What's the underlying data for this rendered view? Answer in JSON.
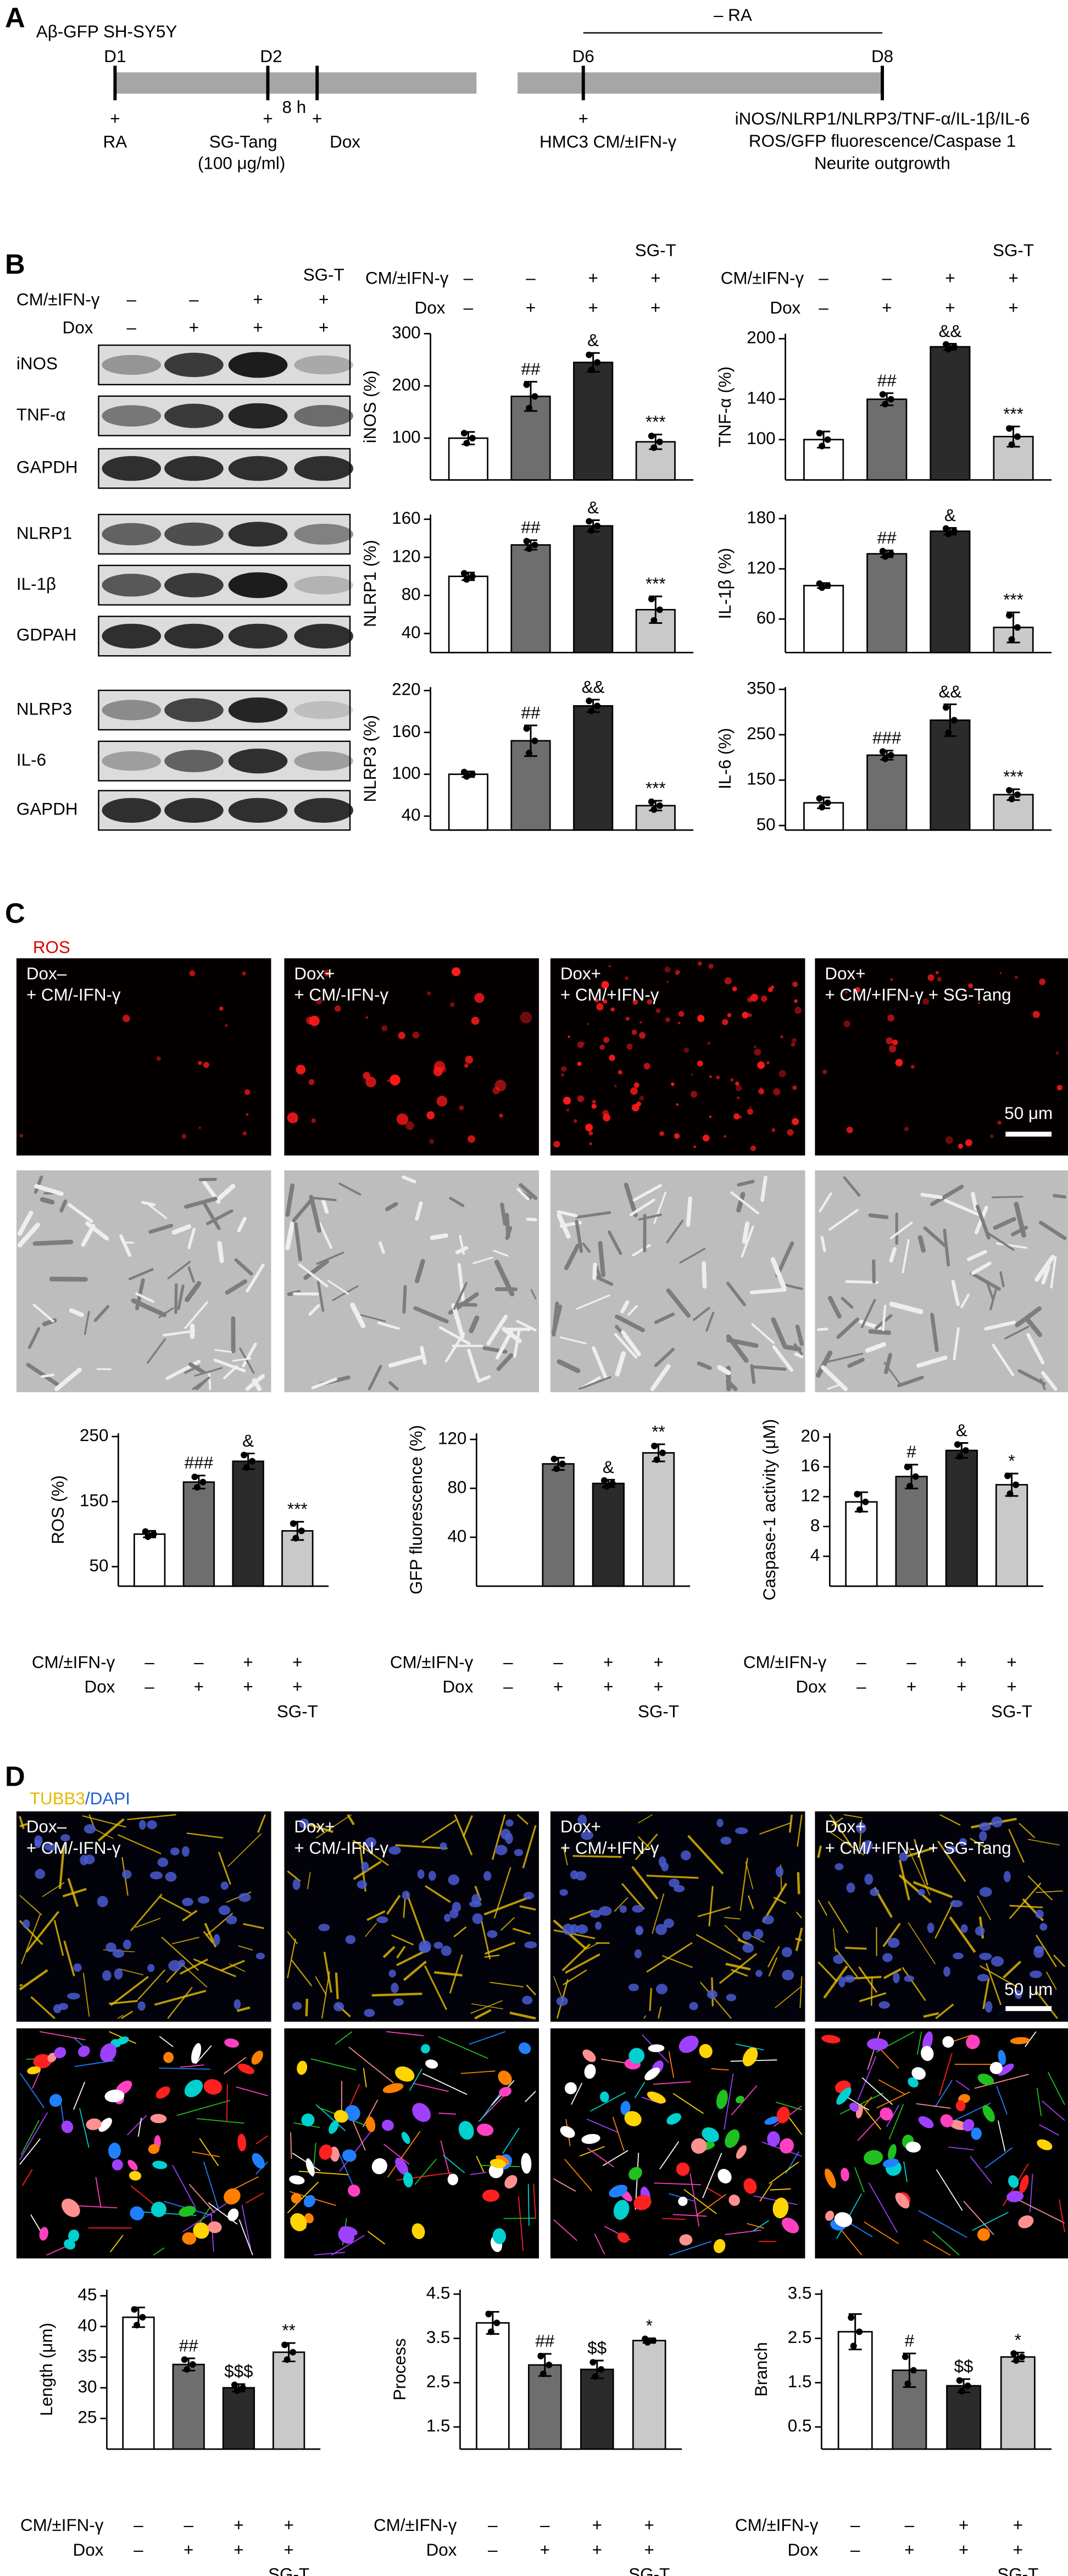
{
  "panel_labels": [
    "A",
    "B",
    "C",
    "D"
  ],
  "timeline": {
    "title": "Aβ-GFP SH-SY5Y",
    "days": [
      "D1",
      "D2",
      "D6",
      "D8"
    ],
    "bracket_label": "– RA",
    "interval": "8 h",
    "additions": [
      {
        "sign": "+",
        "label": "RA"
      },
      {
        "sign": "+",
        "label": "SG-Tang",
        "note": "(100 μg/ml)"
      },
      {
        "sign": "+",
        "label": "Dox"
      },
      {
        "sign": "+",
        "label": "HMC3 CM/±IFN-γ"
      }
    ],
    "readouts": [
      "iNOS/NLRP1/NLRP3/TNF-α/IL-1β/IL-6",
      "ROS/GFP fluorescence/Caspase 1",
      "Neurite outgrowth"
    ]
  },
  "blot": {
    "condition_rows": [
      {
        "label": "CM/±IFN-γ",
        "marks": [
          "–",
          "–",
          "+",
          "+"
        ]
      },
      {
        "label": "Dox",
        "marks": [
          "–",
          "+",
          "+",
          "+"
        ]
      }
    ],
    "group_label": "SG-T",
    "proteins": [
      "iNOS",
      "TNF-α",
      "GAPDH",
      "NLRP1",
      "IL-1β",
      "GDPAH",
      "NLRP3",
      "IL-6",
      "GAPDH"
    ]
  },
  "ros_images": {
    "channel": "ROS",
    "labels": [
      [
        "Dox–",
        "+ CM/-IFN-γ"
      ],
      [
        "Dox+",
        "+ CM/-IFN-γ"
      ],
      [
        "Dox+",
        "+ CM/+IFN-γ"
      ],
      [
        "Dox+",
        "+ CM/+IFN-γ + SG-Tang"
      ]
    ],
    "scale": "50 μm"
  },
  "neurite_images": {
    "channel": [
      "TUBB3",
      "/DAPI"
    ],
    "labels": [
      [
        "Dox–",
        "+ CM/-IFN-γ"
      ],
      [
        "Dox+",
        "+ CM/-IFN-γ"
      ],
      [
        "Dox+",
        "+ CM/+IFN-γ"
      ],
      [
        "Dox+",
        "+ CM/+IFN-γ + SG-Tang"
      ]
    ],
    "scale": "50 μm"
  },
  "chart_data": [
    {
      "type": "bar",
      "y_label": "iNOS (%)",
      "values": [
        100,
        180,
        245,
        93
      ],
      "errors": [
        12,
        28,
        18,
        14
      ],
      "annotations": [
        null,
        "##",
        "&",
        "***"
      ],
      "colors": [
        "#ffffff",
        "#6e6e6e",
        "#2b2b2b",
        "#c9c9c9"
      ],
      "ylim": [
        20,
        300
      ],
      "yticks": [
        100,
        200,
        300
      ],
      "condition_rows": [
        {
          "label": "CM/±IFN-γ",
          "marks": [
            "–",
            "–",
            "+",
            "+"
          ]
        },
        {
          "label": "Dox",
          "marks": [
            "–",
            "+",
            "+",
            "+"
          ]
        }
      ],
      "group_label": "SG-T"
    },
    {
      "type": "bar",
      "y_label": "TNF-α (%)",
      "values": [
        100,
        140,
        192,
        103
      ],
      "errors": [
        8,
        6,
        3,
        10
      ],
      "annotations": [
        null,
        "##",
        "&&",
        "***"
      ],
      "colors": [
        "#ffffff",
        "#6e6e6e",
        "#2b2b2b",
        "#c9c9c9"
      ],
      "ylim": [
        60,
        205
      ],
      "yticks": [
        100,
        140,
        200
      ],
      "condition_rows": [
        {
          "label": "CM/±IFN-γ",
          "marks": [
            "–",
            "–",
            "+",
            "+"
          ]
        },
        {
          "label": "Dox",
          "marks": [
            "–",
            "+",
            "+",
            "+"
          ]
        }
      ],
      "group_label": "SG-T"
    },
    {
      "type": "bar",
      "y_label": "NLRP1 (%)",
      "values": [
        100,
        133,
        153,
        65
      ],
      "errors": [
        4,
        5,
        6,
        14
      ],
      "annotations": [
        null,
        "##",
        "&",
        "***"
      ],
      "colors": [
        "#ffffff",
        "#6e6e6e",
        "#2b2b2b",
        "#c9c9c9"
      ],
      "ylim": [
        20,
        165
      ],
      "yticks": [
        40,
        80,
        120,
        160
      ]
    },
    {
      "type": "bar",
      "y_label": "IL-1β (%)",
      "values": [
        100,
        138,
        165,
        50
      ],
      "errors": [
        3,
        4,
        4,
        18
      ],
      "annotations": [
        null,
        "##",
        "&",
        "***"
      ],
      "colors": [
        "#ffffff",
        "#6e6e6e",
        "#2b2b2b",
        "#c9c9c9"
      ],
      "ylim": [
        20,
        185
      ],
      "yticks": [
        60,
        120,
        180
      ]
    },
    {
      "type": "bar",
      "y_label": "NLRP3 (%)",
      "values": [
        100,
        148,
        198,
        55
      ],
      "errors": [
        4,
        22,
        9,
        7
      ],
      "annotations": [
        null,
        "##",
        "&&",
        "***"
      ],
      "colors": [
        "#ffffff",
        "#6e6e6e",
        "#2b2b2b",
        "#c9c9c9"
      ],
      "ylim": [
        20,
        225
      ],
      "yticks": [
        40,
        100,
        160,
        220
      ]
    },
    {
      "type": "bar",
      "y_label": "IL-6 (%)",
      "values": [
        100,
        205,
        282,
        118
      ],
      "errors": [
        12,
        10,
        35,
        12
      ],
      "annotations": [
        null,
        "###",
        "&&",
        "***"
      ],
      "colors": [
        "#ffffff",
        "#6e6e6e",
        "#2b2b2b",
        "#c9c9c9"
      ],
      "ylim": [
        40,
        355
      ],
      "yticks": [
        50,
        150,
        250,
        350
      ]
    },
    {
      "type": "bar",
      "y_label": "ROS (%)",
      "values": [
        100,
        180,
        212,
        105
      ],
      "errors": [
        5,
        10,
        12,
        14
      ],
      "annotations": [
        null,
        "###",
        "&",
        "***"
      ],
      "colors": [
        "#ffffff",
        "#6e6e6e",
        "#2b2b2b",
        "#c9c9c9"
      ],
      "ylim": [
        20,
        255
      ],
      "yticks": [
        50,
        150,
        250
      ],
      "condition_rows": [
        {
          "label": "CM/±IFN-γ",
          "marks": [
            "–",
            "–",
            "+",
            "+"
          ]
        },
        {
          "label": "Dox",
          "marks": [
            "–",
            "+",
            "+",
            "+"
          ]
        }
      ],
      "group_label": "SG-T"
    },
    {
      "type": "bar",
      "y_label": "GFP fluorescence (%)",
      "values": [
        null,
        100,
        84,
        109
      ],
      "errors": [
        null,
        5,
        3,
        7
      ],
      "annotations": [
        null,
        null,
        "&",
        "**"
      ],
      "colors": [
        "#ffffff",
        "#6e6e6e",
        "#2b2b2b",
        "#c9c9c9"
      ],
      "ylim": [
        0,
        125
      ],
      "yticks": [
        40,
        80,
        120
      ],
      "condition_rows": [
        {
          "label": "CM/±IFN-γ",
          "marks": [
            "–",
            "–",
            "+",
            "+"
          ]
        },
        {
          "label": "Dox",
          "marks": [
            "–",
            "+",
            "+",
            "+"
          ]
        }
      ],
      "group_label": "SG-T"
    },
    {
      "type": "bar",
      "y_label": "Caspase-1 activity (μM)",
      "values": [
        11.3,
        14.7,
        18.2,
        13.6
      ],
      "errors": [
        1.3,
        1.6,
        1.0,
        1.5
      ],
      "annotations": [
        null,
        "#",
        "&",
        "*"
      ],
      "colors": [
        "#ffffff",
        "#6e6e6e",
        "#2b2b2b",
        "#c9c9c9"
      ],
      "ylim": [
        0,
        20.5
      ],
      "yticks": [
        4,
        8,
        12,
        16,
        20
      ],
      "condition_rows": [
        {
          "label": "CM/±IFN-γ",
          "marks": [
            "–",
            "–",
            "+",
            "+"
          ]
        },
        {
          "label": "Dox",
          "marks": [
            "–",
            "+",
            "+",
            "+"
          ]
        }
      ],
      "group_label": "SG-T"
    },
    {
      "type": "bar",
      "y_label": "Length (μm)",
      "values": [
        41.5,
        33.8,
        30,
        35.8
      ],
      "errors": [
        1.6,
        1.0,
        0.6,
        1.5
      ],
      "annotations": [
        null,
        "##",
        "$$$",
        "**"
      ],
      "colors": [
        "#ffffff",
        "#6e6e6e",
        "#2b2b2b",
        "#c9c9c9"
      ],
      "ylim": [
        20,
        46
      ],
      "yticks": [
        25,
        30,
        35,
        40,
        45
      ],
      "condition_rows": [
        {
          "label": "CM/±IFN-γ",
          "marks": [
            "–",
            "–",
            "+",
            "+"
          ]
        },
        {
          "label": "Dox",
          "marks": [
            "–",
            "+",
            "+",
            "+"
          ]
        }
      ],
      "group_label": "SG-T"
    },
    {
      "type": "bar",
      "y_label": "Process",
      "values": [
        3.85,
        2.9,
        2.8,
        3.45
      ],
      "errors": [
        0.25,
        0.25,
        0.2,
        0.05
      ],
      "annotations": [
        null,
        "##",
        "$$",
        "*"
      ],
      "colors": [
        "#ffffff",
        "#6e6e6e",
        "#2b2b2b",
        "#c9c9c9"
      ],
      "ylim": [
        1,
        4.6
      ],
      "yticks": [
        1.5,
        2.5,
        3.5,
        4.5
      ],
      "condition_rows": [
        {
          "label": "CM/±IFN-γ",
          "marks": [
            "–",
            "–",
            "+",
            "+"
          ]
        },
        {
          "label": "Dox",
          "marks": [
            "–",
            "+",
            "+",
            "+"
          ]
        }
      ],
      "group_label": "SG-T"
    },
    {
      "type": "bar",
      "y_label": "Branch",
      "values": [
        2.65,
        1.78,
        1.43,
        2.08
      ],
      "errors": [
        0.4,
        0.38,
        0.15,
        0.1
      ],
      "annotations": [
        null,
        "#",
        "$$",
        "*"
      ],
      "colors": [
        "#ffffff",
        "#6e6e6e",
        "#2b2b2b",
        "#c9c9c9"
      ],
      "ylim": [
        0,
        3.6
      ],
      "yticks": [
        0.5,
        1.5,
        2.5,
        3.5
      ],
      "condition_rows": [
        {
          "label": "CM/±IFN-γ",
          "marks": [
            "–",
            "–",
            "+",
            "+"
          ]
        },
        {
          "label": "Dox",
          "marks": [
            "–",
            "+",
            "+",
            "+"
          ]
        }
      ],
      "group_label": "SG-T"
    }
  ]
}
